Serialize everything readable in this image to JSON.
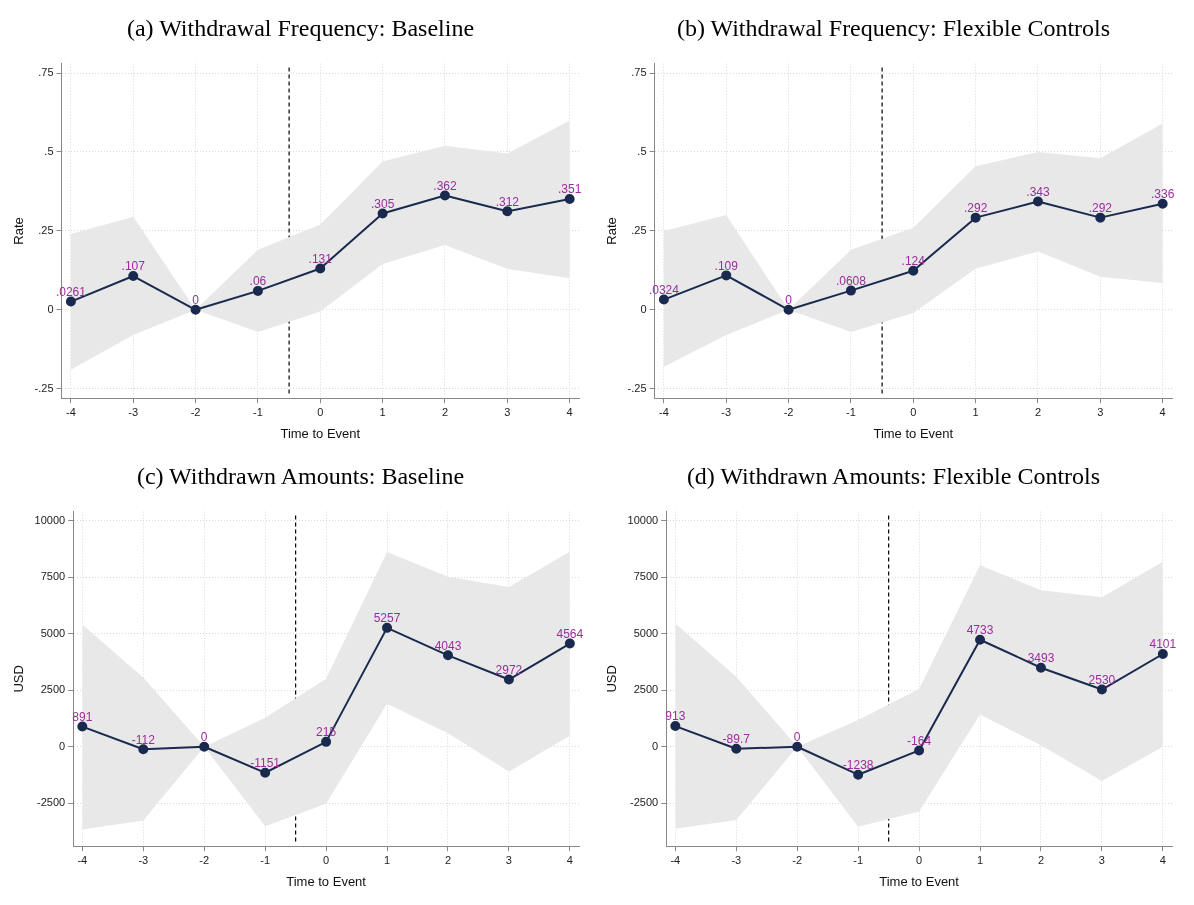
{
  "chart_data": [
    {
      "type": "line",
      "title": "(a) Withdrawal Frequency: Baseline",
      "xlabel": "Time to Event",
      "ylabel": "Rate",
      "x": [
        -4,
        -3,
        -2,
        -1,
        0,
        1,
        2,
        3,
        4
      ],
      "xlim": [
        -4.15,
        4.15
      ],
      "xticks": [
        -4,
        -3,
        -2,
        -1,
        0,
        1,
        2,
        3,
        4
      ],
      "ylim": [
        -0.28,
        0.78
      ],
      "yticks": [
        {
          "value": -0.25,
          "label": "-.25"
        },
        0,
        {
          "value": 0.25,
          "label": ".25"
        },
        {
          "value": 0.5,
          "label": ".5"
        },
        {
          "value": 0.75,
          "label": ".75"
        }
      ],
      "grid": true,
      "marker": "circle",
      "line_style": "solid",
      "series": [
        {
          "color": "#1a2a4f",
          "values": [
            0.0261,
            0.107,
            0,
            0.06,
            0.131,
            0.305,
            0.362,
            0.312,
            0.351
          ],
          "value_labels": [
            ".0261",
            ".107",
            "0",
            ".06",
            ".131",
            ".305",
            ".362",
            ".312",
            ".351"
          ],
          "lower": [
            -0.19,
            -0.08,
            0,
            -0.07,
            -0.005,
            0.145,
            0.205,
            0.13,
            0.1
          ],
          "upper": [
            0.24,
            0.295,
            0,
            0.19,
            0.27,
            0.47,
            0.52,
            0.495,
            0.6
          ]
        }
      ],
      "ref_lines": [
        {
          "axis": "x",
          "value": -0.5,
          "color": "#000000",
          "line_style": "dashed"
        }
      ]
    },
    {
      "type": "line",
      "title": "(b) Withdrawal Frequency: Flexible Controls",
      "xlabel": "Time to Event",
      "ylabel": "Rate",
      "x": [
        -4,
        -3,
        -2,
        -1,
        0,
        1,
        2,
        3,
        4
      ],
      "xlim": [
        -4.15,
        4.15
      ],
      "xticks": [
        -4,
        -3,
        -2,
        -1,
        0,
        1,
        2,
        3,
        4
      ],
      "ylim": [
        -0.28,
        0.78
      ],
      "yticks": [
        {
          "value": -0.25,
          "label": "-.25"
        },
        0,
        {
          "value": 0.25,
          "label": ".25"
        },
        {
          "value": 0.5,
          "label": ".5"
        },
        {
          "value": 0.75,
          "label": ".75"
        }
      ],
      "grid": true,
      "marker": "circle",
      "line_style": "solid",
      "series": [
        {
          "color": "#1a2a4f",
          "values": [
            0.0324,
            0.109,
            0,
            0.0608,
            0.124,
            0.292,
            0.343,
            0.292,
            0.336
          ],
          "value_labels": [
            ".0324",
            ".109",
            "0",
            ".0608",
            ".124",
            ".292",
            ".343",
            ".292",
            ".336"
          ],
          "lower": [
            -0.18,
            -0.08,
            0,
            -0.07,
            -0.01,
            0.13,
            0.185,
            0.105,
            0.085
          ],
          "upper": [
            0.25,
            0.3,
            0,
            0.19,
            0.26,
            0.455,
            0.5,
            0.48,
            0.59
          ]
        }
      ],
      "ref_lines": [
        {
          "axis": "x",
          "value": -0.5,
          "color": "#000000",
          "line_style": "dashed"
        }
      ]
    },
    {
      "type": "line",
      "title": "(c) Withdrawn Amounts: Baseline",
      "xlabel": "Time to Event",
      "ylabel": "USD",
      "x": [
        -4,
        -3,
        -2,
        -1,
        0,
        1,
        2,
        3,
        4
      ],
      "xlim": [
        -4.15,
        4.15
      ],
      "xticks": [
        -4,
        -3,
        -2,
        -1,
        0,
        1,
        2,
        3,
        4
      ],
      "ylim": [
        -4400,
        10400
      ],
      "yticks": [
        -2500,
        0,
        2500,
        5000,
        7500,
        10000
      ],
      "grid": true,
      "marker": "circle",
      "line_style": "solid",
      "series": [
        {
          "color": "#1a2a4f",
          "values": [
            891,
            -112,
            0,
            -1151,
            215,
            5257,
            4043,
            2972,
            4564
          ],
          "value_labels": [
            "891",
            "-112",
            "0",
            "-1151",
            "215",
            "5257",
            "4043",
            "2972",
            "4564"
          ],
          "lower": [
            -3660,
            -3265,
            0,
            -3520,
            -2520,
            1900,
            600,
            -1100,
            480
          ],
          "upper": [
            5410,
            3060,
            0,
            1280,
            3010,
            8610,
            7520,
            7060,
            8620
          ]
        }
      ],
      "ref_lines": [
        {
          "axis": "x",
          "value": -0.5,
          "color": "#000000",
          "line_style": "dashed"
        }
      ]
    },
    {
      "type": "line",
      "title": "(d) Withdrawn Amounts: Flexible Controls",
      "xlabel": "Time to Event",
      "ylabel": "USD",
      "x": [
        -4,
        -3,
        -2,
        -1,
        0,
        1,
        2,
        3,
        4
      ],
      "xlim": [
        -4.15,
        4.15
      ],
      "xticks": [
        -4,
        -3,
        -2,
        -1,
        0,
        1,
        2,
        3,
        4
      ],
      "ylim": [
        -4400,
        10400
      ],
      "yticks": [
        -2500,
        0,
        2500,
        5000,
        7500,
        10000
      ],
      "grid": true,
      "marker": "circle",
      "line_style": "solid",
      "series": [
        {
          "color": "#1a2a4f",
          "values": [
            913,
            -89.7,
            0,
            -1238,
            -164,
            4733,
            3493,
            2530,
            4101
          ],
          "value_labels": [
            "913",
            "-89.7",
            "0",
            "-1238",
            "-164",
            "4733",
            "3493",
            "2530",
            "4101"
          ],
          "lower": [
            -3630,
            -3240,
            0,
            -3545,
            -2860,
            1420,
            70,
            -1520,
            0
          ],
          "upper": [
            5445,
            3100,
            0,
            1180,
            2550,
            8030,
            6920,
            6610,
            8185
          ]
        }
      ],
      "ref_lines": [
        {
          "axis": "x",
          "value": -0.5,
          "color": "#000000",
          "line_style": "dashed"
        }
      ]
    }
  ]
}
